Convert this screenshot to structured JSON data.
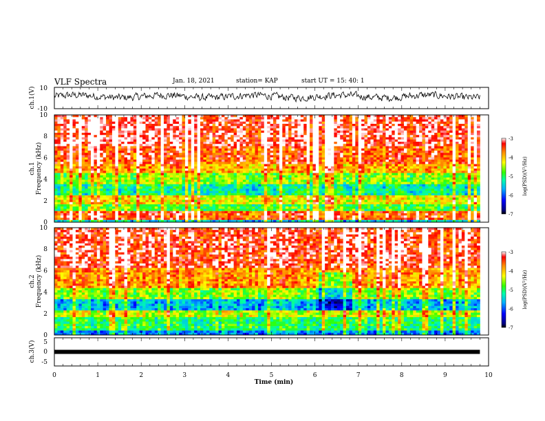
{
  "header": {
    "title": "VLF Spectra",
    "date": "Jan. 18, 2021",
    "station": "station= KAP",
    "start": "start  UT  =   15: 40: 1"
  },
  "chart_data": [
    {
      "type": "line",
      "ylabel": "ch.1(V)",
      "ylim": [
        -10,
        10
      ],
      "ytick_labels": [
        "10",
        "-10"
      ],
      "xlim": [
        0,
        10
      ],
      "trace_color": "#000000"
    },
    {
      "type": "heatmap",
      "ylabel": "ch.1",
      "ylabel2": "Frequency  (kHz)",
      "ylim": [
        0,
        10
      ],
      "ytick_labels": [
        "0",
        "2",
        "4",
        "6",
        "8",
        "10"
      ],
      "xlim": [
        0,
        10
      ],
      "data_end_min": 9.8,
      "bands_khz": [
        {
          "from": 0.0,
          "to": 0.3,
          "level": -5.5
        },
        {
          "from": 0.3,
          "to": 1.0,
          "level": -3.5
        },
        {
          "from": 1.0,
          "to": 1.6,
          "level": -4.8
        },
        {
          "from": 1.6,
          "to": 2.6,
          "level": -4.2
        },
        {
          "from": 2.6,
          "to": 3.6,
          "level": -5.2
        },
        {
          "from": 3.6,
          "to": 4.6,
          "level": -4.6
        },
        {
          "from": 4.6,
          "to": 5.4,
          "level": -3.9
        },
        {
          "from": 5.4,
          "to": 7.0,
          "level": -3.5
        },
        {
          "from": 7.0,
          "to": 10.0,
          "level": -3.2
        }
      ],
      "colorbar": {
        "label": "log(PSD)(V²/Hz)",
        "ticks": [
          "-3",
          "-4",
          "-5",
          "-6",
          "-7"
        ],
        "range": [
          -7,
          -3
        ]
      }
    },
    {
      "type": "heatmap",
      "ylabel": "ch.2",
      "ylabel2": "Frequency  (kHz)",
      "ylim": [
        0,
        10
      ],
      "ytick_labels": [
        "0",
        "2",
        "4",
        "6",
        "8",
        "10"
      ],
      "xlim": [
        0,
        10
      ],
      "data_end_min": 9.8,
      "bands_khz": [
        {
          "from": 0.0,
          "to": 0.4,
          "level": -5.8
        },
        {
          "from": 0.4,
          "to": 1.6,
          "level": -5.0
        },
        {
          "from": 1.6,
          "to": 2.2,
          "level": -4.4
        },
        {
          "from": 2.2,
          "to": 3.4,
          "level": -5.6
        },
        {
          "from": 3.4,
          "to": 4.4,
          "level": -4.6
        },
        {
          "from": 4.4,
          "to": 6.2,
          "level": -3.8
        },
        {
          "from": 6.2,
          "to": 10.0,
          "level": -3.3
        }
      ],
      "colorbar": {
        "label": "log(PSD)(V²/Hz)",
        "ticks": [
          "-3",
          "-4",
          "-5",
          "-6",
          "-7"
        ],
        "range": [
          -7,
          -3
        ]
      }
    },
    {
      "type": "line",
      "ylabel": "ch.3(V)",
      "ylim": [
        -5,
        5
      ],
      "ytick_labels": [
        "5",
        "0",
        "-5"
      ],
      "xlim": [
        0,
        10
      ],
      "trace_level_v": 0,
      "trace_color": "#000000"
    }
  ],
  "xaxis": {
    "label": "Time  (min)",
    "tick_labels": [
      "0",
      "1",
      "2",
      "3",
      "4",
      "5",
      "6",
      "7",
      "8",
      "9",
      "10"
    ]
  }
}
